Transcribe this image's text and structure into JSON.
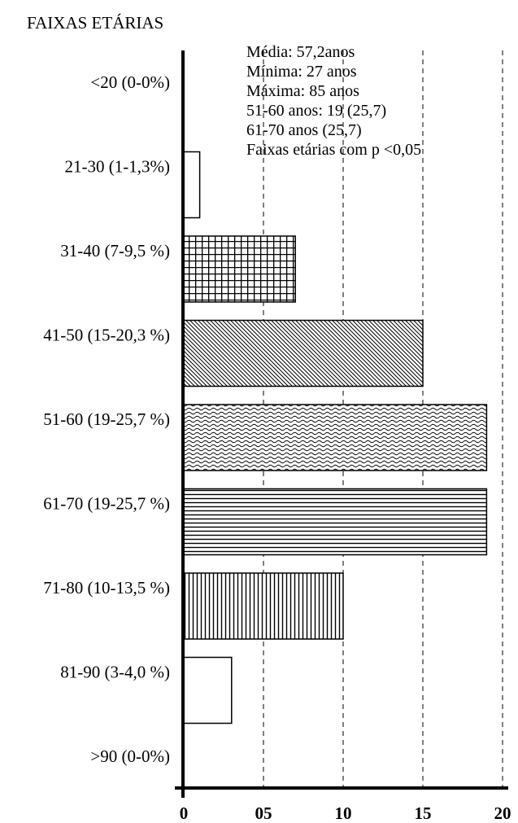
{
  "chart_data": {
    "type": "bar",
    "orientation": "horizontal",
    "title": "FAIXAS ETÁRIAS",
    "categories": [
      "<20 (0-0%)",
      "21-30 (1-1,3%)",
      "31-40 (7-9,5 %)",
      "41-50 (15-20,3 %)",
      "51-60 (19-25,7 %)",
      "61-70 (19-25,7 %)",
      "71-80 (10-13,5 %)",
      "81-90 (3-4,0 %)",
      ">90 (0-0%)"
    ],
    "values": [
      0,
      1,
      7,
      15,
      19,
      19,
      10,
      3,
      0
    ],
    "fill_patterns": [
      "none",
      "none",
      "grid",
      "diagonal",
      "wave",
      "horizontal",
      "vertical",
      "none",
      "none"
    ],
    "xlim": [
      0,
      20
    ],
    "xticks": [
      0,
      5,
      10,
      15,
      20
    ],
    "xtick_labels": [
      "0",
      "05",
      "10",
      "15",
      "20"
    ],
    "grid": "vertical dashed",
    "annotations": [
      "Média: 57,2anos",
      "Mínima: 27 anos",
      "Máxima: 85 anos",
      "51-60 anos: 19 (25,7)",
      "61-70 anos (25,7)",
      "Faixas etárias com p <0,05"
    ]
  }
}
